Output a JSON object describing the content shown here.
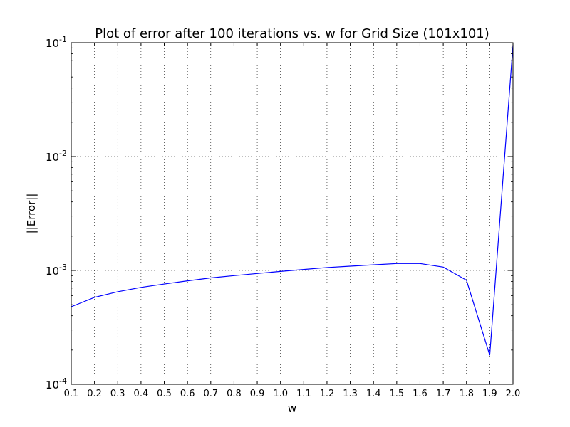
{
  "chart_data": {
    "type": "line",
    "title": "Plot of error after 100 iterations vs. w for Grid Size (101x101)",
    "xlabel": "w",
    "ylabel": "||Error||",
    "xlim": [
      0.1,
      2.0
    ],
    "ylim": [
      0.0001,
      0.1
    ],
    "yscale": "log",
    "grid": true,
    "x_ticks": [
      "0.1",
      "0.2",
      "0.3",
      "0.4",
      "0.5",
      "0.6",
      "0.7",
      "0.8",
      "0.9",
      "1.0",
      "1.1",
      "1.2",
      "1.3",
      "1.4",
      "1.5",
      "1.6",
      "1.7",
      "1.8",
      "1.9",
      "2.0"
    ],
    "y_ticks": [
      {
        "value": 0.0001,
        "base": "10",
        "exp": "-4"
      },
      {
        "value": 0.001,
        "base": "10",
        "exp": "-3"
      },
      {
        "value": 0.01,
        "base": "10",
        "exp": "-2"
      },
      {
        "value": 0.1,
        "base": "10",
        "exp": "-1"
      }
    ],
    "series": [
      {
        "color": "#0000ff",
        "x": [
          0.1,
          0.2,
          0.3,
          0.4,
          0.5,
          0.6,
          0.7,
          0.8,
          0.9,
          1.0,
          1.1,
          1.2,
          1.3,
          1.4,
          1.5,
          1.6,
          1.7,
          1.8,
          1.9,
          2.0
        ],
        "y": [
          0.00048,
          0.00058,
          0.00065,
          0.00071,
          0.00076,
          0.00081,
          0.00086,
          0.0009,
          0.00094,
          0.00098,
          0.00102,
          0.00106,
          0.00109,
          0.00112,
          0.00115,
          0.00115,
          0.00107,
          0.00082,
          0.00018,
          0.095
        ]
      }
    ]
  }
}
